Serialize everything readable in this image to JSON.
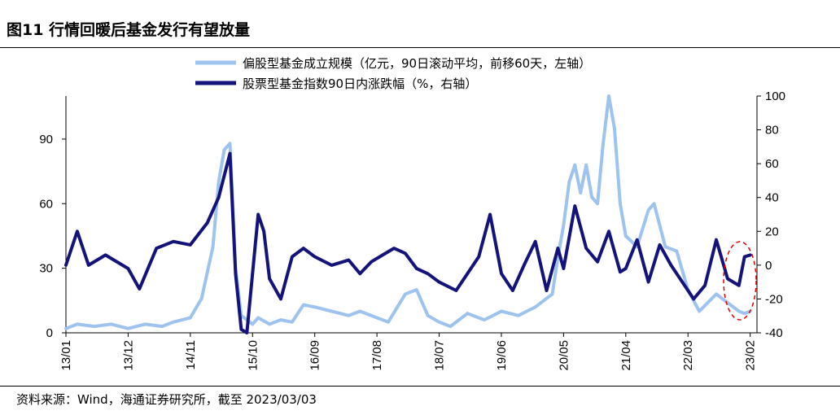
{
  "header": {
    "title": "图11 行情回暖后基金发行有望放量"
  },
  "footer": {
    "source": "资料来源：Wind，海通证券研究所，截至 2023/03/03"
  },
  "chart_data": {
    "type": "line",
    "x_ticks": [
      "13/01",
      "13/12",
      "14/11",
      "15/10",
      "16/09",
      "17/08",
      "18/07",
      "19/06",
      "20/05",
      "21/04",
      "22/03",
      "23/02"
    ],
    "y_left": {
      "ticks": [
        "0",
        "30",
        "60",
        "90"
      ],
      "range": [
        0,
        110
      ]
    },
    "y_right": {
      "ticks": [
        "-40",
        "-20",
        "0",
        "20",
        "40",
        "60",
        "80",
        "100"
      ],
      "range": [
        -40,
        100
      ]
    },
    "colors": {
      "fund_size": "#9dc3ee",
      "index_change": "#13137a",
      "highlight": "#e00000"
    },
    "series": [
      {
        "key": "fund_size",
        "name": "偏股型基金成立规模（亿元，90日滚动平均，前移60天，左轴）",
        "axis": "left",
        "points": [
          [
            "13/01",
            2
          ],
          [
            "13/03",
            4
          ],
          [
            "13/06",
            3
          ],
          [
            "13/09",
            4
          ],
          [
            "13/12",
            2
          ],
          [
            "14/03",
            4
          ],
          [
            "14/06",
            3
          ],
          [
            "14/08",
            5
          ],
          [
            "14/11",
            7
          ],
          [
            "15/01",
            16
          ],
          [
            "15/03",
            40
          ],
          [
            "15/04",
            70
          ],
          [
            "15/05",
            85
          ],
          [
            "15/06",
            88
          ],
          [
            "15/07",
            30
          ],
          [
            "15/08",
            8
          ],
          [
            "15/10",
            4
          ],
          [
            "15/11",
            7
          ],
          [
            "16/01",
            4
          ],
          [
            "16/03",
            6
          ],
          [
            "16/05",
            5
          ],
          [
            "16/07",
            13
          ],
          [
            "16/09",
            12
          ],
          [
            "16/12",
            10
          ],
          [
            "17/03",
            8
          ],
          [
            "17/05",
            10
          ],
          [
            "17/08",
            7
          ],
          [
            "17/10",
            5
          ],
          [
            "18/01",
            18
          ],
          [
            "18/03",
            20
          ],
          [
            "18/05",
            8
          ],
          [
            "18/07",
            5
          ],
          [
            "18/09",
            3
          ],
          [
            "18/12",
            9
          ],
          [
            "19/03",
            6
          ],
          [
            "19/06",
            10
          ],
          [
            "19/09",
            8
          ],
          [
            "19/12",
            12
          ],
          [
            "20/03",
            18
          ],
          [
            "20/04",
            35
          ],
          [
            "20/05",
            50
          ],
          [
            "20/06",
            70
          ],
          [
            "20/07",
            78
          ],
          [
            "20/08",
            65
          ],
          [
            "20/09",
            78
          ],
          [
            "20/10",
            63
          ],
          [
            "20/11",
            60
          ],
          [
            "20/12",
            88
          ],
          [
            "21/01",
            110
          ],
          [
            "21/02",
            95
          ],
          [
            "21/03",
            60
          ],
          [
            "21/04",
            45
          ],
          [
            "21/06",
            40
          ],
          [
            "21/08",
            57
          ],
          [
            "21/09",
            60
          ],
          [
            "21/11",
            40
          ],
          [
            "22/01",
            38
          ],
          [
            "22/03",
            20
          ],
          [
            "22/05",
            10
          ],
          [
            "22/08",
            18
          ],
          [
            "22/10",
            14
          ],
          [
            "22/12",
            10
          ],
          [
            "23/01",
            9
          ],
          [
            "23/02",
            10
          ]
        ]
      },
      {
        "key": "index_change",
        "name": "股票型基金指数90日内涨跌幅（%，右轴）",
        "axis": "right",
        "points": [
          [
            "13/01",
            0
          ],
          [
            "13/03",
            20
          ],
          [
            "13/05",
            0
          ],
          [
            "13/08",
            6
          ],
          [
            "13/12",
            -2
          ],
          [
            "14/02",
            -14
          ],
          [
            "14/05",
            10
          ],
          [
            "14/08",
            14
          ],
          [
            "14/11",
            12
          ],
          [
            "15/02",
            25
          ],
          [
            "15/04",
            40
          ],
          [
            "15/06",
            66
          ],
          [
            "15/07",
            -5
          ],
          [
            "15/08",
            -38
          ],
          [
            "15/09",
            -40
          ],
          [
            "15/11",
            30
          ],
          [
            "15/12",
            20
          ],
          [
            "16/01",
            -8
          ],
          [
            "16/03",
            -20
          ],
          [
            "16/05",
            5
          ],
          [
            "16/07",
            10
          ],
          [
            "16/09",
            5
          ],
          [
            "16/12",
            0
          ],
          [
            "17/03",
            3
          ],
          [
            "17/05",
            -5
          ],
          [
            "17/07",
            2
          ],
          [
            "17/09",
            6
          ],
          [
            "17/11",
            10
          ],
          [
            "18/01",
            7
          ],
          [
            "18/03",
            -2
          ],
          [
            "18/05",
            -5
          ],
          [
            "18/07",
            -10
          ],
          [
            "18/10",
            -15
          ],
          [
            "18/12",
            -5
          ],
          [
            "19/02",
            5
          ],
          [
            "19/04",
            30
          ],
          [
            "19/06",
            -5
          ],
          [
            "19/08",
            -15
          ],
          [
            "19/10",
            0
          ],
          [
            "19/12",
            14
          ],
          [
            "20/02",
            -15
          ],
          [
            "20/04",
            10
          ],
          [
            "20/05",
            -2
          ],
          [
            "20/07",
            35
          ],
          [
            "20/09",
            10
          ],
          [
            "20/11",
            2
          ],
          [
            "21/01",
            20
          ],
          [
            "21/03",
            -4
          ],
          [
            "21/04",
            -2
          ],
          [
            "21/06",
            15
          ],
          [
            "21/08",
            -10
          ],
          [
            "21/10",
            12
          ],
          [
            "21/12",
            0
          ],
          [
            "22/02",
            -10
          ],
          [
            "22/04",
            -20
          ],
          [
            "22/06",
            -12
          ],
          [
            "22/08",
            15
          ],
          [
            "22/10",
            -8
          ],
          [
            "22/12",
            -12
          ],
          [
            "23/01",
            5
          ],
          [
            "23/02",
            6
          ]
        ]
      }
    ],
    "annotation": "red dashed ellipse highlighting the latest period (22/12–23/02)"
  }
}
